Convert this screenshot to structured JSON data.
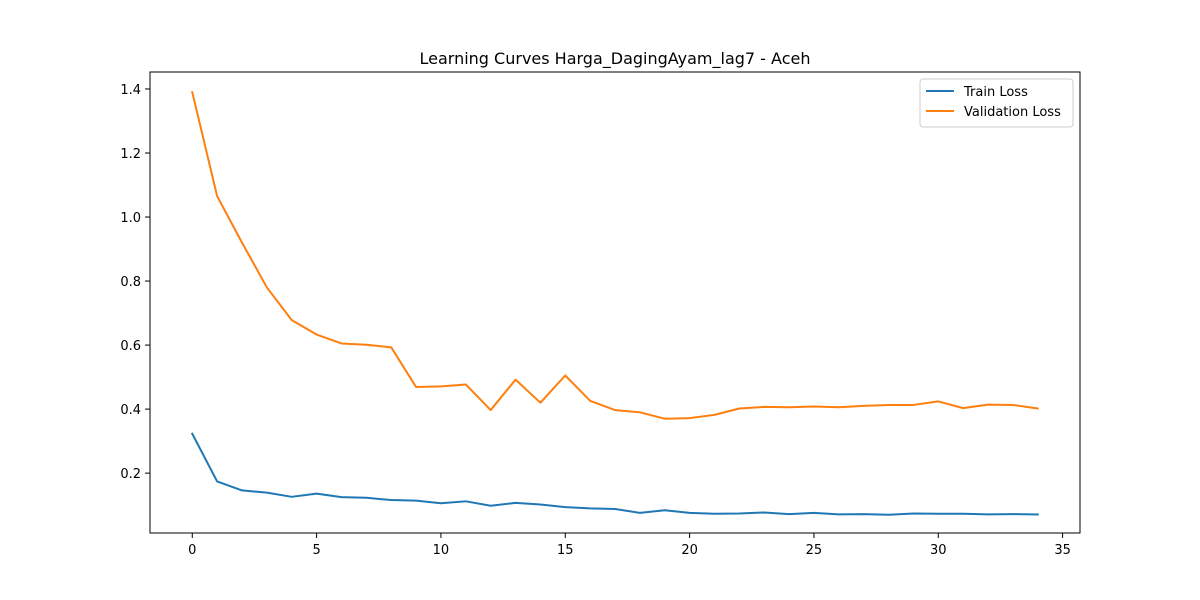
{
  "chart_data": {
    "type": "line",
    "title": "Learning Curves Harga_DagingAyam_lag7 - Aceh",
    "xlabel": "",
    "ylabel": "",
    "xlim": [
      -1.7,
      35.7
    ],
    "ylim": [
      0.013,
      1.453
    ],
    "xticks": [
      0,
      5,
      10,
      15,
      20,
      25,
      30,
      35
    ],
    "yticks": [
      0.2,
      0.4,
      0.6,
      0.8,
      1.0,
      1.2,
      1.4
    ],
    "grid": false,
    "legend_position": "top-right",
    "x": [
      0,
      1,
      2,
      3,
      4,
      5,
      6,
      7,
      8,
      9,
      10,
      11,
      12,
      13,
      14,
      15,
      16,
      17,
      18,
      19,
      20,
      21,
      22,
      23,
      24,
      25,
      26,
      27,
      28,
      29,
      30,
      31,
      32,
      33,
      34
    ],
    "series": [
      {
        "name": "Train Loss",
        "color": "#1f77b4",
        "values": [
          0.323,
          0.174,
          0.146,
          0.139,
          0.126,
          0.136,
          0.125,
          0.123,
          0.116,
          0.114,
          0.106,
          0.112,
          0.098,
          0.107,
          0.102,
          0.094,
          0.09,
          0.088,
          0.076,
          0.084,
          0.076,
          0.073,
          0.074,
          0.077,
          0.072,
          0.076,
          0.071,
          0.072,
          0.07,
          0.074,
          0.073,
          0.073,
          0.071,
          0.072,
          0.071
        ]
      },
      {
        "name": "Validation Loss",
        "color": "#ff7f0e",
        "values": [
          1.39,
          1.065,
          0.92,
          0.78,
          0.678,
          0.633,
          0.605,
          0.601,
          0.593,
          0.469,
          0.471,
          0.477,
          0.397,
          0.492,
          0.42,
          0.505,
          0.426,
          0.397,
          0.39,
          0.37,
          0.372,
          0.382,
          0.402,
          0.407,
          0.406,
          0.408,
          0.406,
          0.41,
          0.413,
          0.413,
          0.424,
          0.403,
          0.414,
          0.413,
          0.402
        ]
      }
    ]
  }
}
